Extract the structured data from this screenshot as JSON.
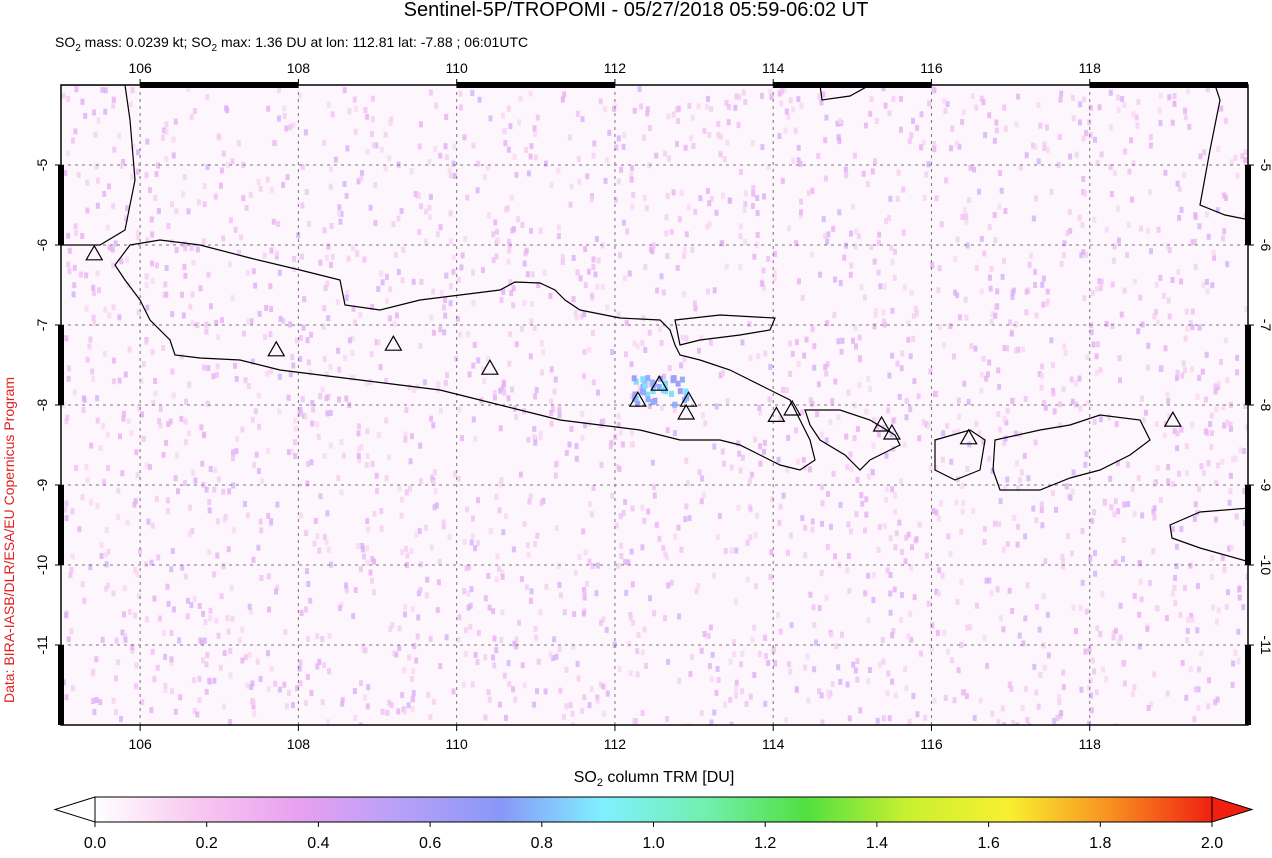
{
  "chart_data": {
    "type": "map",
    "title": "Sentinel-5P/TROPOMI - 05/27/2018 05:59-06:02 UT",
    "subtitle_parts": [
      "SO",
      "2",
      " mass: 0.0239 kt; SO",
      "2",
      " max: 1.36 DU at lon: 112.81 lat: -7.88 ; 06:01UTC"
    ],
    "credit": "Data: BIRA-IASB/DLR/ESA/EU Copernicus Program",
    "colorbar_label_parts": [
      "SO",
      "2",
      " column TRM [DU]"
    ],
    "xlim": [
      105,
      120
    ],
    "ylim": [
      -12,
      -4
    ],
    "xticks": [
      106,
      108,
      110,
      112,
      114,
      116,
      118
    ],
    "yticks": [
      -5,
      -6,
      -7,
      -8,
      -9,
      -10,
      -11
    ],
    "grid": true,
    "volcanoes": {
      "lon": [
        105.42,
        107.72,
        109.2,
        110.42,
        112.29,
        112.56,
        112.93,
        112.9,
        114.04,
        114.24,
        115.37,
        115.5,
        116.47,
        119.05
      ],
      "lat": [
        -6.11,
        -7.31,
        -7.24,
        -7.54,
        -7.94,
        -7.74,
        -7.94,
        -8.1,
        -8.13,
        -8.05,
        -8.25,
        -8.35,
        -8.41,
        -8.19
      ]
    },
    "colorbar": {
      "lim": [
        0,
        2
      ],
      "ticks": [
        {
          "value": 0,
          "label": "0.0"
        },
        {
          "value": 0.2,
          "label": "0.2"
        },
        {
          "value": 0.4,
          "label": "0.4"
        },
        {
          "value": 0.6,
          "label": "0.6"
        },
        {
          "value": 0.8,
          "label": "0.8"
        },
        {
          "value": 1,
          "label": "1.0"
        },
        {
          "value": 1.2,
          "label": "1.2"
        },
        {
          "value": 1.4,
          "label": "1.4"
        },
        {
          "value": 1.6,
          "label": "1.6"
        },
        {
          "value": 1.8,
          "label": "1.8"
        },
        {
          "value": 2,
          "label": "2.0"
        }
      ],
      "colors": [
        "#ffffff",
        "#f8c8f0",
        "#e8a0f0",
        "#b8a0f8",
        "#8898f8",
        "#80f0ff",
        "#70f0b0",
        "#50e040",
        "#c8f030",
        "#f8f030",
        "#f89020",
        "#f02010"
      ]
    }
  }
}
